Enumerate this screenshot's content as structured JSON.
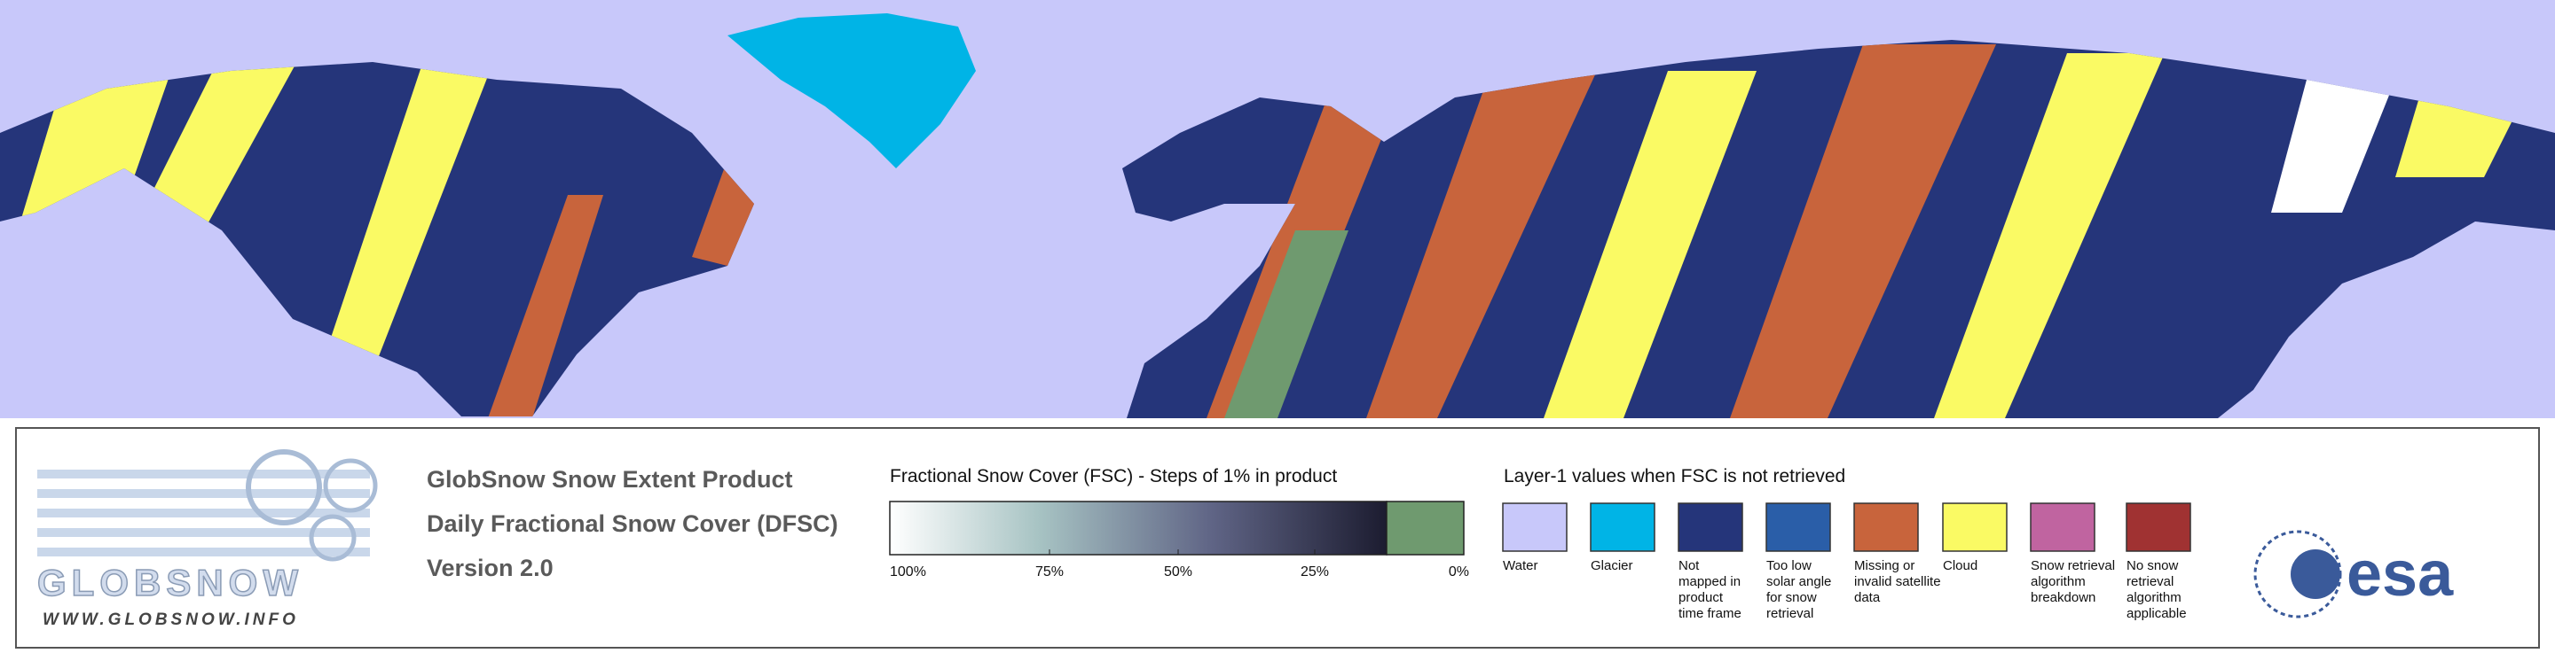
{
  "logo": {
    "name": "GLOBSNOW",
    "url": "WWW.GLOBSNOW.INFO"
  },
  "header": {
    "lines": [
      "GlobSnow Snow Extent Product",
      "Daily Fractional Snow Cover (DFSC)",
      "Version 2.0"
    ]
  },
  "fsc_legend": {
    "title": "Fractional Snow Cover (FSC) - Steps of 1% in product",
    "ticks": [
      "100%",
      "75%",
      "50%",
      "25%",
      "0%"
    ]
  },
  "layer1_legend": {
    "title": "Layer-1 values when FSC is not retrieved",
    "items": [
      {
        "label": [
          "Water"
        ],
        "color": "#c8c8fa"
      },
      {
        "label": [
          "Glacier"
        ],
        "color": "#00b4e6"
      },
      {
        "label": [
          "Not",
          "mapped in",
          "product",
          "time frame"
        ],
        "color": "#25357a"
      },
      {
        "label": [
          "Too low",
          "solar angle",
          "for snow",
          "retrieval"
        ],
        "color": "#2a5ea8"
      },
      {
        "label": [
          "Missing or",
          "invalid satellite",
          "data"
        ],
        "color": "#c8643c"
      },
      {
        "label": [
          "Cloud"
        ],
        "color": "#fafa64"
      },
      {
        "label": [
          "Snow retrieval",
          "algorithm",
          "breakdown"
        ],
        "color": "#c064a0"
      },
      {
        "label": [
          "No snow",
          "retrieval",
          "algorithm",
          "applicable"
        ],
        "color": "#a03232"
      }
    ]
  },
  "esa": "esa"
}
